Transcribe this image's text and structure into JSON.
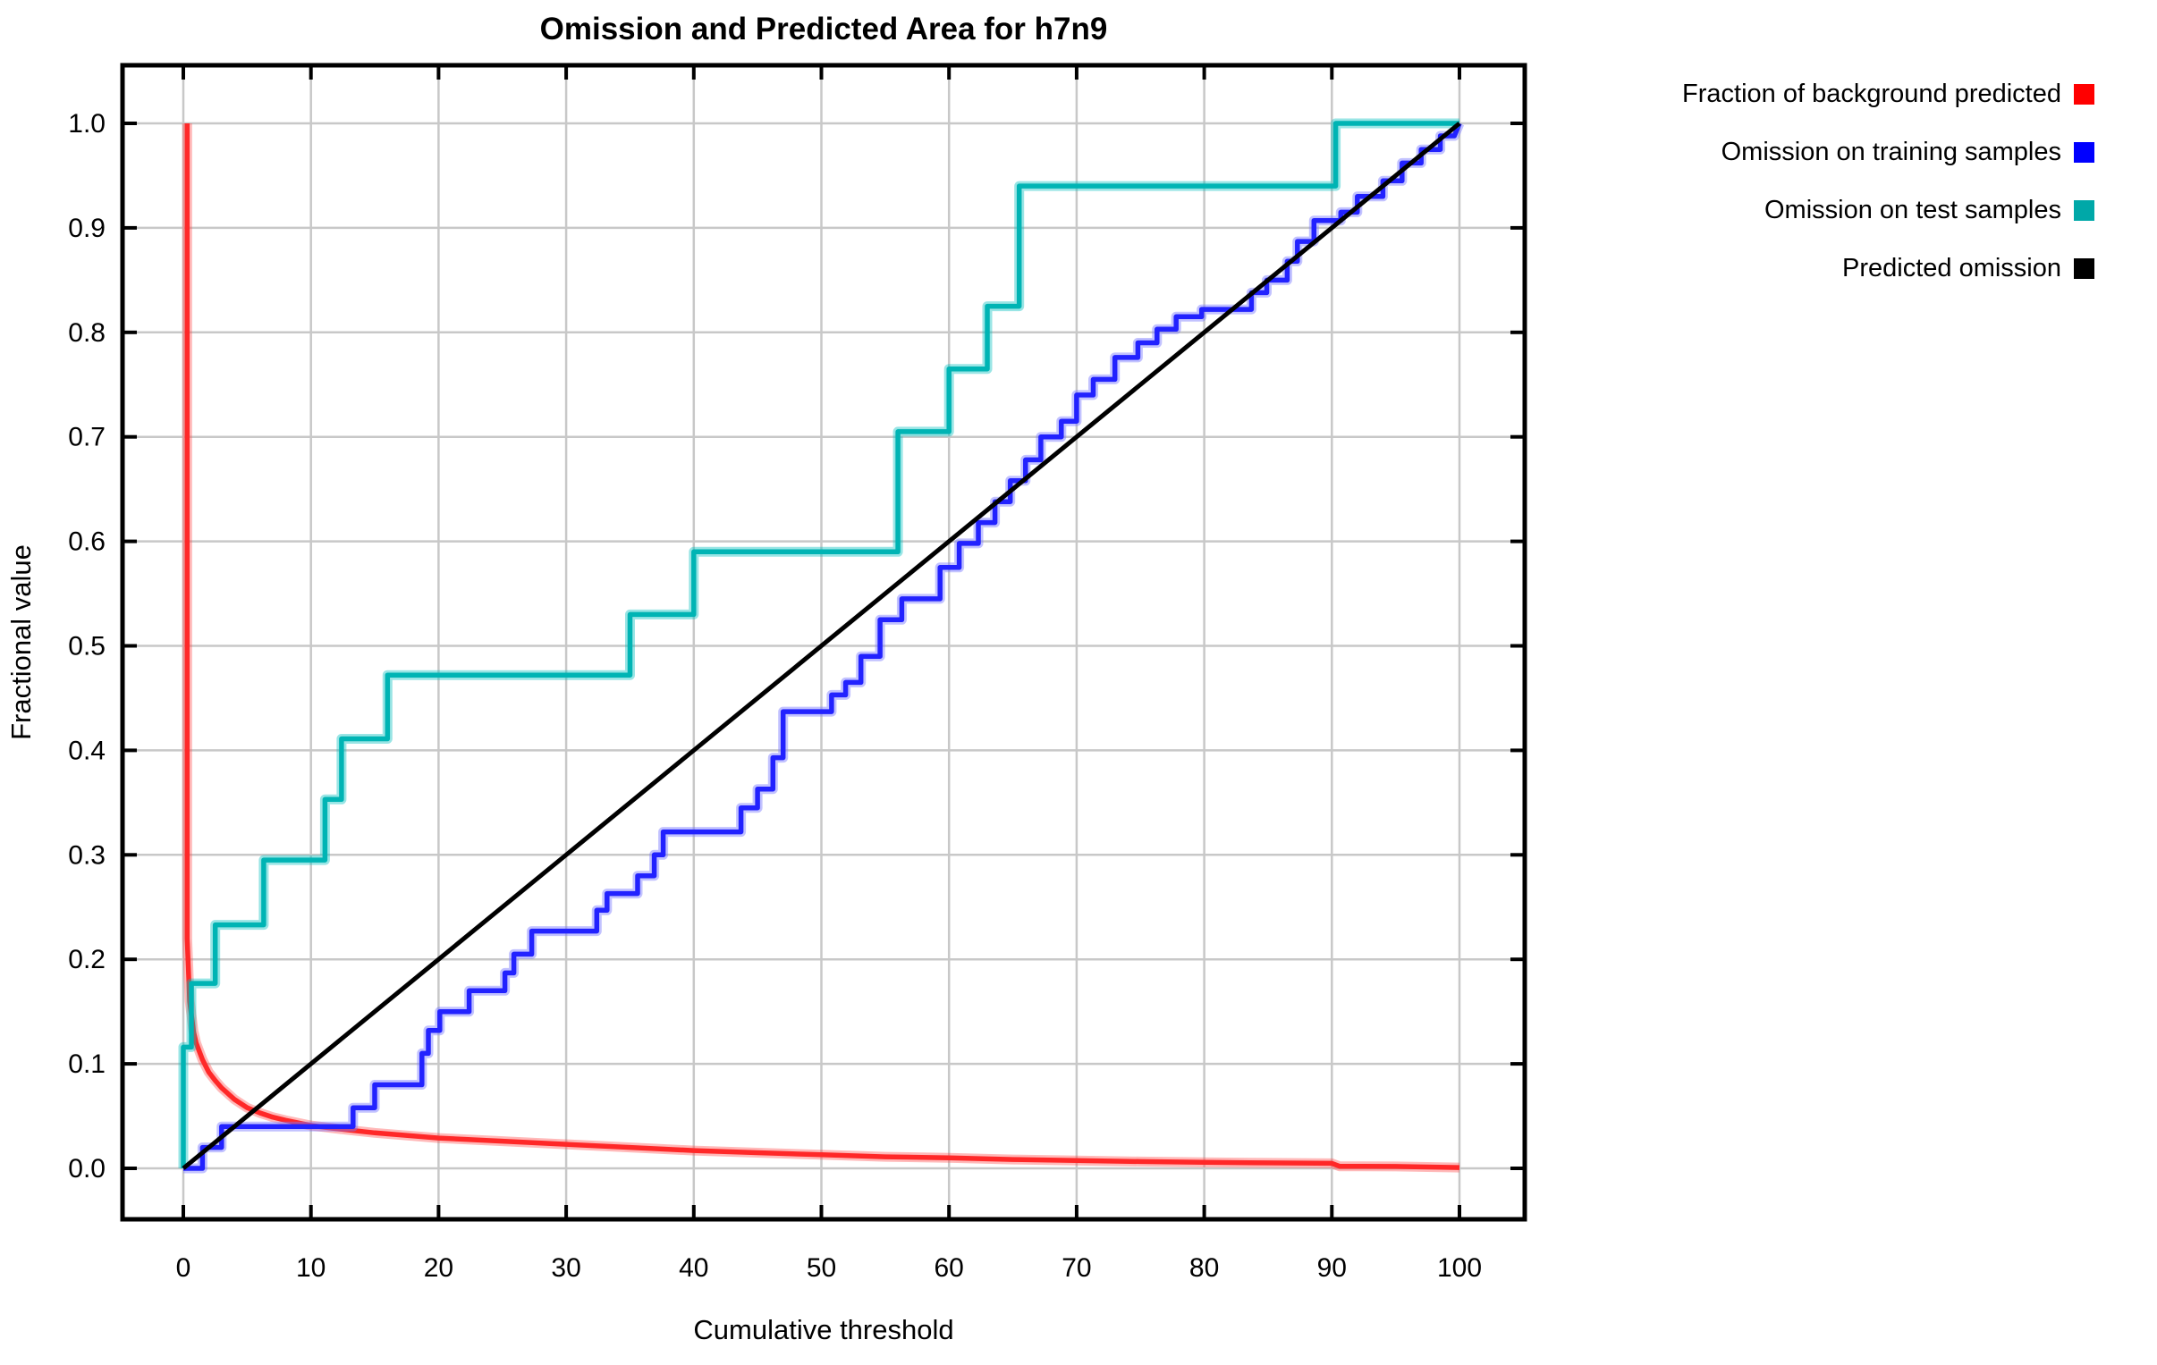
{
  "page": {
    "background": "#ffffff"
  },
  "chart": {
    "title": "Omission and Predicted Area for h7n9",
    "xlabel": "Cumulative threshold",
    "ylabel": "Fractional value",
    "legend": [
      {
        "label": "Fraction of background predicted",
        "color": "#ff0000"
      },
      {
        "label": "Omission on training samples",
        "color": "#0000ff"
      },
      {
        "label": "Omission on test samples",
        "color": "#00a8a8"
      },
      {
        "label": "Predicted omission",
        "color": "#000000"
      }
    ]
  },
  "chart_data": {
    "type": "line",
    "title": "Omission and Predicted Area for h7n9",
    "xlabel": "Cumulative threshold",
    "ylabel": "Fractional value",
    "xlim": [
      0,
      100
    ],
    "ylim": [
      0.0,
      1.0
    ],
    "x_ticks": [
      0,
      10,
      20,
      30,
      40,
      50,
      60,
      70,
      80,
      90,
      100
    ],
    "y_ticks": [
      0.0,
      0.1,
      0.2,
      0.3,
      0.4,
      0.5,
      0.6,
      0.7,
      0.8,
      0.9,
      1.0
    ],
    "grid": true,
    "grid_color": "#c8c8c8",
    "legend_position": "top-right",
    "series": [
      {
        "name": "Fraction of background predicted",
        "color": "#ff2828",
        "halo": "rgba(255,80,80,0.40)",
        "width": 5.5,
        "points": [
          [
            0.3,
            1.0
          ],
          [
            0.3,
            0.22
          ],
          [
            0.5,
            0.16
          ],
          [
            0.8,
            0.131
          ],
          [
            1,
            0.12
          ],
          [
            1.5,
            0.104
          ],
          [
            2,
            0.092
          ],
          [
            2.5,
            0.084
          ],
          [
            3,
            0.077
          ],
          [
            4,
            0.066
          ],
          [
            5,
            0.058
          ],
          [
            6,
            0.053
          ],
          [
            7,
            0.049
          ],
          [
            8,
            0.046
          ],
          [
            10,
            0.041
          ],
          [
            12,
            0.038
          ],
          [
            15,
            0.034
          ],
          [
            18,
            0.031
          ],
          [
            20,
            0.029
          ],
          [
            25,
            0.026
          ],
          [
            30,
            0.023
          ],
          [
            35,
            0.02
          ],
          [
            40,
            0.017
          ],
          [
            45,
            0.015
          ],
          [
            50,
            0.013
          ],
          [
            55,
            0.011
          ],
          [
            60,
            0.01
          ],
          [
            65,
            0.0085
          ],
          [
            70,
            0.0075
          ],
          [
            75,
            0.0065
          ],
          [
            80,
            0.0058
          ],
          [
            85,
            0.0052
          ],
          [
            90,
            0.0048
          ],
          [
            90.6,
            0.002
          ],
          [
            95,
            0.0018
          ],
          [
            100,
            0.0008
          ]
        ]
      },
      {
        "name": "Omission on training samples",
        "color": "#2222ff",
        "halo": "rgba(120,120,255,0.45)",
        "width": 5.5,
        "points": [
          [
            0,
            0
          ],
          [
            1.5,
            0
          ],
          [
            1.5,
            0.02
          ],
          [
            3,
            0.02
          ],
          [
            3,
            0.04
          ],
          [
            13.3,
            0.04
          ],
          [
            13.3,
            0.058
          ],
          [
            15,
            0.058
          ],
          [
            15,
            0.08
          ],
          [
            18.7,
            0.08
          ],
          [
            18.7,
            0.11
          ],
          [
            19.2,
            0.11
          ],
          [
            19.2,
            0.132
          ],
          [
            20.1,
            0.132
          ],
          [
            20.1,
            0.15
          ],
          [
            22.4,
            0.15
          ],
          [
            22.4,
            0.17
          ],
          [
            25.2,
            0.17
          ],
          [
            25.2,
            0.187
          ],
          [
            25.9,
            0.187
          ],
          [
            25.9,
            0.205
          ],
          [
            27.3,
            0.205
          ],
          [
            27.3,
            0.227
          ],
          [
            32.4,
            0.227
          ],
          [
            32.4,
            0.247
          ],
          [
            33.2,
            0.247
          ],
          [
            33.2,
            0.263
          ],
          [
            35.6,
            0.263
          ],
          [
            35.6,
            0.28
          ],
          [
            36.9,
            0.28
          ],
          [
            36.9,
            0.3
          ],
          [
            37.6,
            0.3
          ],
          [
            37.6,
            0.322
          ],
          [
            43.7,
            0.322
          ],
          [
            43.7,
            0.345
          ],
          [
            45,
            0.345
          ],
          [
            45,
            0.363
          ],
          [
            46.2,
            0.363
          ],
          [
            46.2,
            0.393
          ],
          [
            47,
            0.393
          ],
          [
            47,
            0.437
          ],
          [
            50.8,
            0.437
          ],
          [
            50.8,
            0.453
          ],
          [
            51.9,
            0.453
          ],
          [
            51.9,
            0.465
          ],
          [
            53.1,
            0.465
          ],
          [
            53.1,
            0.49
          ],
          [
            54.6,
            0.49
          ],
          [
            54.6,
            0.525
          ],
          [
            56.3,
            0.525
          ],
          [
            56.3,
            0.545
          ],
          [
            59.3,
            0.545
          ],
          [
            59.3,
            0.575
          ],
          [
            60.8,
            0.575
          ],
          [
            60.8,
            0.598
          ],
          [
            62.3,
            0.598
          ],
          [
            62.3,
            0.618
          ],
          [
            63.6,
            0.618
          ],
          [
            63.6,
            0.638
          ],
          [
            64.8,
            0.638
          ],
          [
            64.8,
            0.658
          ],
          [
            66,
            0.658
          ],
          [
            66,
            0.678
          ],
          [
            67.2,
            0.678
          ],
          [
            67.2,
            0.7
          ],
          [
            68.8,
            0.7
          ],
          [
            68.8,
            0.715
          ],
          [
            70,
            0.715
          ],
          [
            70,
            0.74
          ],
          [
            71.3,
            0.74
          ],
          [
            71.3,
            0.755
          ],
          [
            73,
            0.755
          ],
          [
            73,
            0.776
          ],
          [
            74.8,
            0.776
          ],
          [
            74.8,
            0.79
          ],
          [
            76.3,
            0.79
          ],
          [
            76.3,
            0.803
          ],
          [
            77.8,
            0.803
          ],
          [
            77.8,
            0.815
          ],
          [
            79.8,
            0.815
          ],
          [
            79.8,
            0.822
          ],
          [
            83.7,
            0.822
          ],
          [
            83.7,
            0.838
          ],
          [
            84.9,
            0.838
          ],
          [
            84.9,
            0.85
          ],
          [
            86.5,
            0.85
          ],
          [
            86.5,
            0.868
          ],
          [
            87.3,
            0.868
          ],
          [
            87.3,
            0.887
          ],
          [
            88.6,
            0.887
          ],
          [
            88.6,
            0.907
          ],
          [
            90.7,
            0.907
          ],
          [
            90.7,
            0.915
          ],
          [
            92,
            0.915
          ],
          [
            92,
            0.93
          ],
          [
            94,
            0.93
          ],
          [
            94,
            0.945
          ],
          [
            95.5,
            0.945
          ],
          [
            95.5,
            0.962
          ],
          [
            97,
            0.962
          ],
          [
            97,
            0.975
          ],
          [
            98.5,
            0.975
          ],
          [
            98.5,
            0.988
          ],
          [
            99.6,
            0.988
          ],
          [
            100,
            1.0
          ]
        ]
      },
      {
        "name": "Omission on test samples",
        "color": "#00b4b4",
        "halo": "rgba(0,190,190,0.40)",
        "width": 5.5,
        "points": [
          [
            0,
            0
          ],
          [
            0,
            0.116
          ],
          [
            0.63,
            0.116
          ],
          [
            0.63,
            0.177
          ],
          [
            2.5,
            0.177
          ],
          [
            2.5,
            0.233
          ],
          [
            6.3,
            0.233
          ],
          [
            6.3,
            0.295
          ],
          [
            11.1,
            0.295
          ],
          [
            11.1,
            0.353
          ],
          [
            12.4,
            0.353
          ],
          [
            12.4,
            0.411
          ],
          [
            16,
            0.411
          ],
          [
            16,
            0.472
          ],
          [
            35,
            0.472
          ],
          [
            35,
            0.53
          ],
          [
            40,
            0.53
          ],
          [
            40,
            0.59
          ],
          [
            56,
            0.59
          ],
          [
            56,
            0.705
          ],
          [
            60,
            0.705
          ],
          [
            60,
            0.765
          ],
          [
            63,
            0.765
          ],
          [
            63,
            0.825
          ],
          [
            65.5,
            0.825
          ],
          [
            65.5,
            0.94
          ],
          [
            90.3,
            0.94
          ],
          [
            90.3,
            1.0
          ],
          [
            100,
            1.0
          ]
        ]
      },
      {
        "name": "Predicted omission",
        "color": "#000000",
        "halo": "rgba(0,0,0,0)",
        "width": 5,
        "points": [
          [
            0,
            0
          ],
          [
            100,
            1.0
          ]
        ]
      }
    ]
  }
}
